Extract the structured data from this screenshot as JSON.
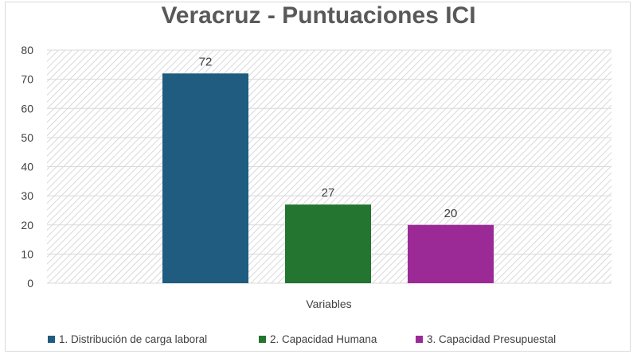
{
  "chart_data": {
    "type": "bar",
    "title": "Veracruz - Puntuaciones ICI",
    "xlabel": "Variables",
    "ylabel": "",
    "ylim": [
      0,
      80
    ],
    "yticks": [
      0,
      10,
      20,
      30,
      40,
      50,
      60,
      70,
      80
    ],
    "grid": true,
    "legend_position": "bottom",
    "series": [
      {
        "name": "1. Distribución de carga laboral",
        "value": 72,
        "color": "#1f5c80"
      },
      {
        "name": "2. Capacidad Humana",
        "value": 27,
        "color": "#23752f"
      },
      {
        "name": "3. Capacidad Presupuestal",
        "value": 20,
        "color": "#9b2a96"
      }
    ]
  }
}
